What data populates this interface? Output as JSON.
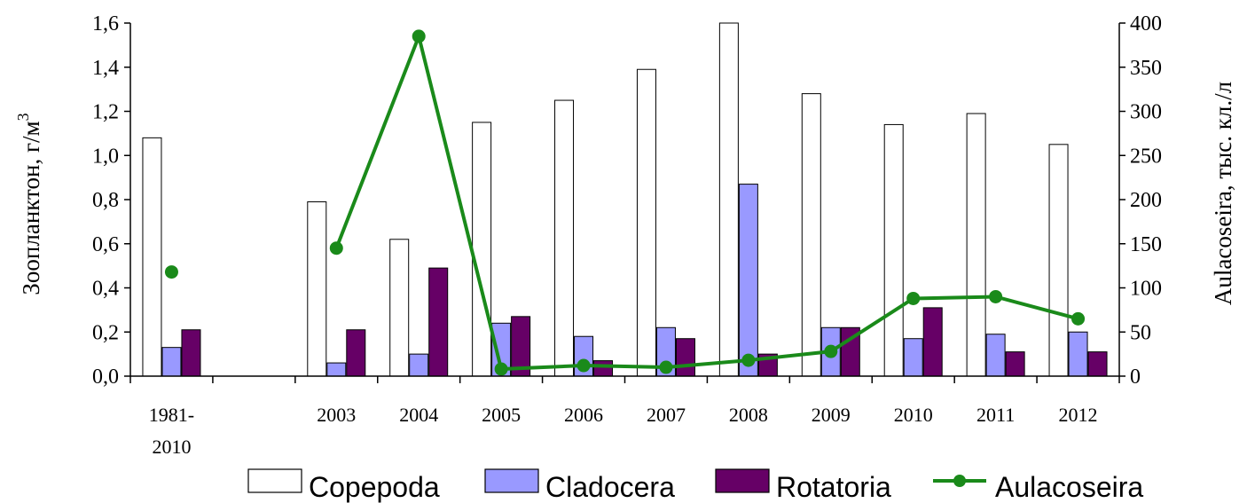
{
  "chart_data": {
    "type": "bar",
    "categories": [
      [
        "1981-",
        "2010"
      ],
      [],
      [
        "2003"
      ],
      [
        "2004"
      ],
      [
        "2005"
      ],
      [
        "2006"
      ],
      [
        "2007"
      ],
      [
        "2008"
      ],
      [
        "2009"
      ],
      [
        "2010"
      ],
      [
        "2011"
      ],
      [
        "2012"
      ]
    ],
    "series": [
      {
        "name": "Copepoda",
        "kind": "bar",
        "axis": "left",
        "color": "#ffffff",
        "values": [
          1.08,
          null,
          0.79,
          0.62,
          1.15,
          1.25,
          1.39,
          1.6,
          1.28,
          1.14,
          1.19,
          1.05
        ]
      },
      {
        "name": "Cladocera",
        "kind": "bar",
        "axis": "left",
        "color": "#9999ff",
        "values": [
          0.13,
          null,
          0.06,
          0.1,
          0.24,
          0.18,
          0.22,
          0.87,
          0.22,
          0.17,
          0.19,
          0.2
        ]
      },
      {
        "name": "Rotatoria",
        "kind": "bar",
        "axis": "left",
        "color": "#660066",
        "values": [
          0.21,
          null,
          0.21,
          0.49,
          0.27,
          0.07,
          0.17,
          0.1,
          0.22,
          0.31,
          0.11,
          0.11
        ]
      },
      {
        "name": "Aulacoseira",
        "kind": "line",
        "axis": "right",
        "color": "#1a8a1a",
        "values": [
          118,
          null,
          145,
          385,
          8,
          12,
          10,
          18,
          28,
          88,
          90,
          65
        ]
      }
    ],
    "y_left": {
      "label_main": "Зоопланктон, г/м",
      "label_sup": "3",
      "range": [
        0,
        1.6
      ],
      "ticks": [
        "0,0",
        "0,2",
        "0,4",
        "0,6",
        "0,8",
        "1,0",
        "1,2",
        "1,4",
        "1,6"
      ]
    },
    "y_right": {
      "label": "Aulacoseira, тыс. кл./л",
      "range": [
        0,
        400
      ],
      "ticks": [
        "0",
        "50",
        "100",
        "150",
        "200",
        "250",
        "300",
        "350",
        "400"
      ]
    },
    "grid": false,
    "legend": {
      "placement": "bottom",
      "entries": [
        "Copepoda",
        "Cladocera",
        "Rotatoria",
        "Aulacoseira"
      ]
    }
  }
}
